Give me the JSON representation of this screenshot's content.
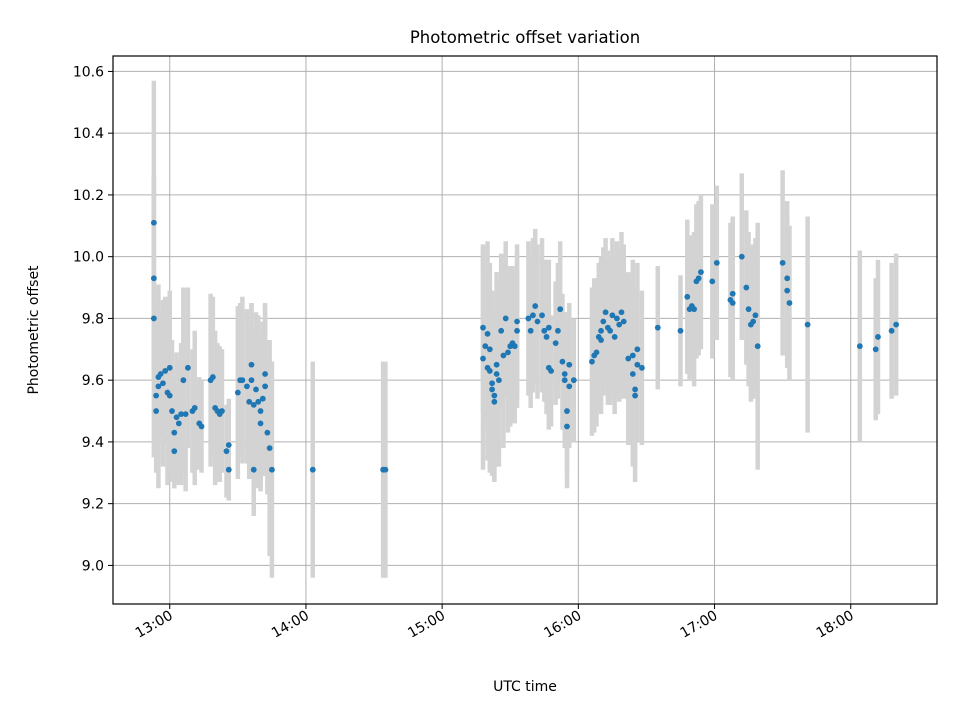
{
  "chart_data": {
    "type": "scatter",
    "title": "Photometric offset variation",
    "xlabel": "UTC time",
    "ylabel": "Photometric offset",
    "x_is_time": true,
    "xlim": [
      "12:35",
      "18:38"
    ],
    "ylim": [
      8.875,
      10.65
    ],
    "xticks": [
      "13:00",
      "14:00",
      "15:00",
      "16:00",
      "17:00",
      "18:00"
    ],
    "yticks": [
      9.0,
      9.2,
      9.4,
      9.6,
      9.8,
      10.0,
      10.2,
      10.4,
      10.6
    ],
    "ytick_labels": [
      "9.0",
      "9.2",
      "9.4",
      "9.6",
      "9.8",
      "10.0",
      "10.2",
      "10.4",
      "10.6"
    ],
    "grid": true,
    "colors": {
      "point": "#1f77b4",
      "errorbar": "#d3d3d3",
      "grid": "#b0b0b0"
    },
    "series": [
      {
        "points": [
          {
            "x": "12:53",
            "y": 10.11,
            "err": 0.46
          },
          {
            "x": "12:53",
            "y": 9.93,
            "err": 0.33
          },
          {
            "x": "12:53",
            "y": 9.8,
            "err": 0.45
          },
          {
            "x": "12:54",
            "y": 9.5,
            "err": 0.15
          },
          {
            "x": "12:54",
            "y": 9.55,
            "err": 0.25
          },
          {
            "x": "12:55",
            "y": 9.58,
            "err": 0.33
          },
          {
            "x": "12:55",
            "y": 9.61,
            "err": 0.25
          },
          {
            "x": "12:56",
            "y": 9.62,
            "err": 0.2
          },
          {
            "x": "12:57",
            "y": 9.59,
            "err": 0.27
          },
          {
            "x": "12:58",
            "y": 9.63,
            "err": 0.24
          },
          {
            "x": "12:59",
            "y": 9.56,
            "err": 0.3
          },
          {
            "x": "13:00",
            "y": 9.64,
            "err": 0.25
          },
          {
            "x": "13:00",
            "y": 9.55,
            "err": 0.25
          },
          {
            "x": "13:01",
            "y": 9.5,
            "err": 0.23
          },
          {
            "x": "13:02",
            "y": 9.43,
            "err": 0.18
          },
          {
            "x": "13:02",
            "y": 9.37,
            "err": 0.12
          },
          {
            "x": "13:03",
            "y": 9.48,
            "err": 0.21
          },
          {
            "x": "13:04",
            "y": 9.46,
            "err": 0.2
          },
          {
            "x": "13:05",
            "y": 9.49,
            "err": 0.23
          },
          {
            "x": "13:06",
            "y": 9.6,
            "err": 0.3
          },
          {
            "x": "13:07",
            "y": 9.49,
            "err": 0.25
          },
          {
            "x": "13:08",
            "y": 9.64,
            "err": 0.26
          },
          {
            "x": "13:10",
            "y": 9.5,
            "err": 0.2
          },
          {
            "x": "13:11",
            "y": 9.51,
            "err": 0.25
          },
          {
            "x": "13:13",
            "y": 9.46,
            "err": 0.15
          },
          {
            "x": "13:14",
            "y": 9.45,
            "err": 0.15
          },
          {
            "x": "13:18",
            "y": 9.6,
            "err": 0.28
          },
          {
            "x": "13:19",
            "y": 9.61,
            "err": 0.26
          },
          {
            "x": "13:20",
            "y": 9.51,
            "err": 0.25
          },
          {
            "x": "13:21",
            "y": 9.5,
            "err": 0.22
          },
          {
            "x": "13:22",
            "y": 9.49,
            "err": 0.22
          },
          {
            "x": "13:23",
            "y": 9.5,
            "err": 0.2
          },
          {
            "x": "13:25",
            "y": 9.37,
            "err": 0.15
          },
          {
            "x": "13:26",
            "y": 9.39,
            "err": 0.15
          },
          {
            "x": "13:26",
            "y": 9.31,
            "err": 0.1
          },
          {
            "x": "13:30",
            "y": 9.56,
            "err": 0.28
          },
          {
            "x": "13:31",
            "y": 9.6,
            "err": 0.25
          },
          {
            "x": "13:32",
            "y": 9.6,
            "err": 0.27
          },
          {
            "x": "13:34",
            "y": 9.58,
            "err": 0.25
          },
          {
            "x": "13:35",
            "y": 9.53,
            "err": 0.25
          },
          {
            "x": "13:36",
            "y": 9.6,
            "err": 0.25
          },
          {
            "x": "13:36",
            "y": 9.65,
            "err": 0.2
          },
          {
            "x": "13:37",
            "y": 9.52,
            "err": 0.25
          },
          {
            "x": "13:37",
            "y": 9.31,
            "err": 0.15
          },
          {
            "x": "13:38",
            "y": 9.57,
            "err": 0.25
          },
          {
            "x": "13:39",
            "y": 9.53,
            "err": 0.28
          },
          {
            "x": "13:40",
            "y": 9.46,
            "err": 0.22
          },
          {
            "x": "13:40",
            "y": 9.5,
            "err": 0.25
          },
          {
            "x": "13:41",
            "y": 9.54,
            "err": 0.25
          },
          {
            "x": "13:42",
            "y": 9.62,
            "err": 0.22
          },
          {
            "x": "13:42",
            "y": 9.58,
            "err": 0.27
          },
          {
            "x": "13:43",
            "y": 9.43,
            "err": 0.2
          },
          {
            "x": "13:44",
            "y": 9.38,
            "err": 0.35
          },
          {
            "x": "13:45",
            "y": 9.31,
            "err": 0.35
          },
          {
            "x": "14:03",
            "y": 9.31,
            "err": 0.35
          },
          {
            "x": "14:34",
            "y": 9.31,
            "err": 0.35
          },
          {
            "x": "14:35",
            "y": 9.31,
            "err": 0.35
          },
          {
            "x": "15:18",
            "y": 9.67,
            "err": 0.36
          },
          {
            "x": "15:18",
            "y": 9.77,
            "err": 0.27
          },
          {
            "x": "15:19",
            "y": 9.71,
            "err": 0.26
          },
          {
            "x": "15:20",
            "y": 9.75,
            "err": 0.3
          },
          {
            "x": "15:20",
            "y": 9.64,
            "err": 0.3
          },
          {
            "x": "15:21",
            "y": 9.63,
            "err": 0.33
          },
          {
            "x": "15:21",
            "y": 9.7,
            "err": 0.28
          },
          {
            "x": "15:22",
            "y": 9.57,
            "err": 0.25
          },
          {
            "x": "15:22",
            "y": 9.59,
            "err": 0.3
          },
          {
            "x": "15:23",
            "y": 9.53,
            "err": 0.25
          },
          {
            "x": "15:23",
            "y": 9.55,
            "err": 0.28
          },
          {
            "x": "15:24",
            "y": 9.65,
            "err": 0.3
          },
          {
            "x": "15:24",
            "y": 9.62,
            "err": 0.3
          },
          {
            "x": "15:25",
            "y": 9.6,
            "err": 0.28
          },
          {
            "x": "15:26",
            "y": 9.76,
            "err": 0.25
          },
          {
            "x": "15:27",
            "y": 9.68,
            "err": 0.3
          },
          {
            "x": "15:28",
            "y": 9.8,
            "err": 0.25
          },
          {
            "x": "15:29",
            "y": 9.69,
            "err": 0.26
          },
          {
            "x": "15:30",
            "y": 9.71,
            "err": 0.26
          },
          {
            "x": "15:31",
            "y": 9.72,
            "err": 0.25
          },
          {
            "x": "15:32",
            "y": 9.71,
            "err": 0.25
          },
          {
            "x": "15:33",
            "y": 9.79,
            "err": 0.25
          },
          {
            "x": "15:33",
            "y": 9.76,
            "err": 0.25
          },
          {
            "x": "15:38",
            "y": 9.8,
            "err": 0.25
          },
          {
            "x": "15:39",
            "y": 9.76,
            "err": 0.25
          },
          {
            "x": "15:40",
            "y": 9.81,
            "err": 0.25
          },
          {
            "x": "15:41",
            "y": 9.84,
            "err": 0.25
          },
          {
            "x": "15:42",
            "y": 9.79,
            "err": 0.25
          },
          {
            "x": "15:44",
            "y": 9.81,
            "err": 0.25
          },
          {
            "x": "15:45",
            "y": 9.76,
            "err": 0.23
          },
          {
            "x": "15:46",
            "y": 9.74,
            "err": 0.25
          },
          {
            "x": "15:47",
            "y": 9.77,
            "err": 0.22
          },
          {
            "x": "15:47",
            "y": 9.64,
            "err": 0.2
          },
          {
            "x": "15:48",
            "y": 9.63,
            "err": 0.18
          },
          {
            "x": "15:50",
            "y": 9.72,
            "err": 0.2
          },
          {
            "x": "15:51",
            "y": 9.76,
            "err": 0.22
          },
          {
            "x": "15:52",
            "y": 9.83,
            "err": 0.22
          },
          {
            "x": "15:53",
            "y": 9.66,
            "err": 0.22
          },
          {
            "x": "15:54",
            "y": 9.62,
            "err": 0.2
          },
          {
            "x": "15:54",
            "y": 9.6,
            "err": 0.22
          },
          {
            "x": "15:55",
            "y": 9.5,
            "err": 0.2
          },
          {
            "x": "15:55",
            "y": 9.45,
            "err": 0.2
          },
          {
            "x": "15:56",
            "y": 9.58,
            "err": 0.2
          },
          {
            "x": "15:56",
            "y": 9.65,
            "err": 0.2
          },
          {
            "x": "15:58",
            "y": 9.6,
            "err": 0.2
          },
          {
            "x": "16:06",
            "y": 9.66,
            "err": 0.24
          },
          {
            "x": "16:07",
            "y": 9.68,
            "err": 0.25
          },
          {
            "x": "16:08",
            "y": 9.69,
            "err": 0.24
          },
          {
            "x": "16:09",
            "y": 9.74,
            "err": 0.24
          },
          {
            "x": "16:10",
            "y": 9.76,
            "err": 0.24
          },
          {
            "x": "16:10",
            "y": 9.73,
            "err": 0.24
          },
          {
            "x": "16:11",
            "y": 9.79,
            "err": 0.24
          },
          {
            "x": "16:12",
            "y": 9.82,
            "err": 0.24
          },
          {
            "x": "16:13",
            "y": 9.77,
            "err": 0.25
          },
          {
            "x": "16:14",
            "y": 9.76,
            "err": 0.24
          },
          {
            "x": "16:15",
            "y": 9.81,
            "err": 0.25
          },
          {
            "x": "16:16",
            "y": 9.74,
            "err": 0.25
          },
          {
            "x": "16:17",
            "y": 9.8,
            "err": 0.25
          },
          {
            "x": "16:18",
            "y": 9.78,
            "err": 0.25
          },
          {
            "x": "16:19",
            "y": 9.82,
            "err": 0.26
          },
          {
            "x": "16:20",
            "y": 9.79,
            "err": 0.25
          },
          {
            "x": "16:22",
            "y": 9.67,
            "err": 0.28
          },
          {
            "x": "16:24",
            "y": 9.68,
            "err": 0.31
          },
          {
            "x": "16:24",
            "y": 9.62,
            "err": 0.3
          },
          {
            "x": "16:25",
            "y": 9.55,
            "err": 0.28
          },
          {
            "x": "16:25",
            "y": 9.57,
            "err": 0.25
          },
          {
            "x": "16:26",
            "y": 9.65,
            "err": 0.25
          },
          {
            "x": "16:26",
            "y": 9.7,
            "err": 0.28
          },
          {
            "x": "16:28",
            "y": 9.64,
            "err": 0.25
          },
          {
            "x": "16:35",
            "y": 9.77,
            "err": 0.2
          },
          {
            "x": "16:45",
            "y": 9.76,
            "err": 0.18
          },
          {
            "x": "16:48",
            "y": 9.87,
            "err": 0.25
          },
          {
            "x": "16:49",
            "y": 9.83,
            "err": 0.23
          },
          {
            "x": "16:50",
            "y": 9.84,
            "err": 0.23
          },
          {
            "x": "16:51",
            "y": 9.83,
            "err": 0.25
          },
          {
            "x": "16:52",
            "y": 9.92,
            "err": 0.25
          },
          {
            "x": "16:53",
            "y": 9.93,
            "err": 0.25
          },
          {
            "x": "16:54",
            "y": 9.95,
            "err": 0.25
          },
          {
            "x": "16:59",
            "y": 9.92,
            "err": 0.25
          },
          {
            "x": "17:01",
            "y": 9.98,
            "err": 0.25
          },
          {
            "x": "17:07",
            "y": 9.86,
            "err": 0.25
          },
          {
            "x": "17:08",
            "y": 9.88,
            "err": 0.25
          },
          {
            "x": "17:08",
            "y": 9.85,
            "err": 0.25
          },
          {
            "x": "17:12",
            "y": 10.0,
            "err": 0.27
          },
          {
            "x": "17:14",
            "y": 9.9,
            "err": 0.25
          },
          {
            "x": "17:15",
            "y": 9.83,
            "err": 0.25
          },
          {
            "x": "17:16",
            "y": 9.78,
            "err": 0.25
          },
          {
            "x": "17:17",
            "y": 9.79,
            "err": 0.25
          },
          {
            "x": "17:18",
            "y": 9.81,
            "err": 0.25
          },
          {
            "x": "17:19",
            "y": 9.71,
            "err": 0.4
          },
          {
            "x": "17:30",
            "y": 9.98,
            "err": 0.3
          },
          {
            "x": "17:32",
            "y": 9.93,
            "err": 0.25
          },
          {
            "x": "17:32",
            "y": 9.89,
            "err": 0.25
          },
          {
            "x": "17:33",
            "y": 9.85,
            "err": 0.25
          },
          {
            "x": "17:41",
            "y": 9.78,
            "err": 0.35
          },
          {
            "x": "18:04",
            "y": 9.71,
            "err": 0.31
          },
          {
            "x": "18:11",
            "y": 9.7,
            "err": 0.23
          },
          {
            "x": "18:12",
            "y": 9.74,
            "err": 0.25
          },
          {
            "x": "18:18",
            "y": 9.76,
            "err": 0.22
          },
          {
            "x": "18:20",
            "y": 9.78,
            "err": 0.23
          }
        ]
      }
    ]
  }
}
